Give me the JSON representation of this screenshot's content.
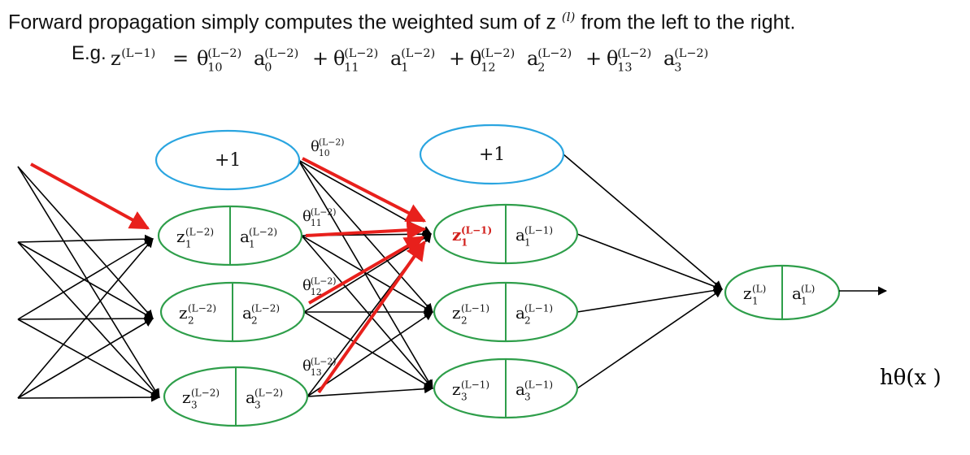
{
  "header": {
    "line1_before": "Forward propagation simply computes the weighted sum of z",
    "line1_sup": "(l)",
    "line1_after": " from the left to the right.",
    "example_prefix": "E.g.",
    "example_lhs": "z",
    "example_lhs_sup": "(L−1)",
    "equals": "=",
    "terms": [
      {
        "theta_sub": "10",
        "theta_sup": "(L−2)",
        "a_sub": "0",
        "a_sup": "(L−2)"
      },
      {
        "theta_sub": "11",
        "theta_sup": "(L−2)",
        "a_sub": "1",
        "a_sup": "(L−2)"
      },
      {
        "theta_sub": "12",
        "theta_sup": "(L−2)",
        "a_sub": "2",
        "a_sup": "(L−2)"
      },
      {
        "theta_sub": "13",
        "theta_sup": "(L−2)",
        "a_sub": "3",
        "a_sup": "(L−2)"
      }
    ],
    "plus": "+"
  },
  "colors": {
    "bias": "#2aa5e0",
    "neuron": "#2e9e4a",
    "edge": "#000000",
    "highlight": "#e8201c",
    "highlight_text": "#d2201c"
  },
  "layer_lm2": {
    "bias_label": "+1",
    "nodes": [
      {
        "z": "z",
        "z_sub": "1",
        "z_sup": "(L−2)",
        "a": "a",
        "a_sub": "1",
        "a_sup": "(L−2)"
      },
      {
        "z": "z",
        "z_sub": "2",
        "z_sup": "(L−2)",
        "a": "a",
        "a_sub": "2",
        "a_sup": "(L−2)"
      },
      {
        "z": "z",
        "z_sub": "3",
        "z_sup": "(L−2)",
        "a": "a",
        "a_sub": "3",
        "a_sup": "(L−2)"
      }
    ]
  },
  "layer_lm1": {
    "bias_label": "+1",
    "nodes": [
      {
        "z": "z",
        "z_sub": "1",
        "z_sup": "(L−1)",
        "a": "a",
        "a_sub": "1",
        "a_sup": "(L−1)"
      },
      {
        "z": "z",
        "z_sub": "2",
        "z_sup": "(L−1)",
        "a": "a",
        "a_sub": "2",
        "a_sup": "(L−1)"
      },
      {
        "z": "z",
        "z_sub": "3",
        "z_sup": "(L−1)",
        "a": "a",
        "a_sub": "3",
        "a_sup": "(L−1)"
      }
    ]
  },
  "layer_l": {
    "node": {
      "z": "z",
      "z_sub": "1",
      "z_sup": "(L)",
      "a": "a",
      "a_sub": "1",
      "a_sup": "(L)"
    }
  },
  "weights": [
    {
      "theta": "θ",
      "sub": "10",
      "sup": "(L−2)"
    },
    {
      "theta": "θ",
      "sub": "11",
      "sup": "(L−2)"
    },
    {
      "theta": "θ",
      "sub": "12",
      "sup": "(L−2)"
    },
    {
      "theta": "θ",
      "sub": "13",
      "sup": "(L−2)"
    }
  ],
  "output_label": "hθ(x )"
}
